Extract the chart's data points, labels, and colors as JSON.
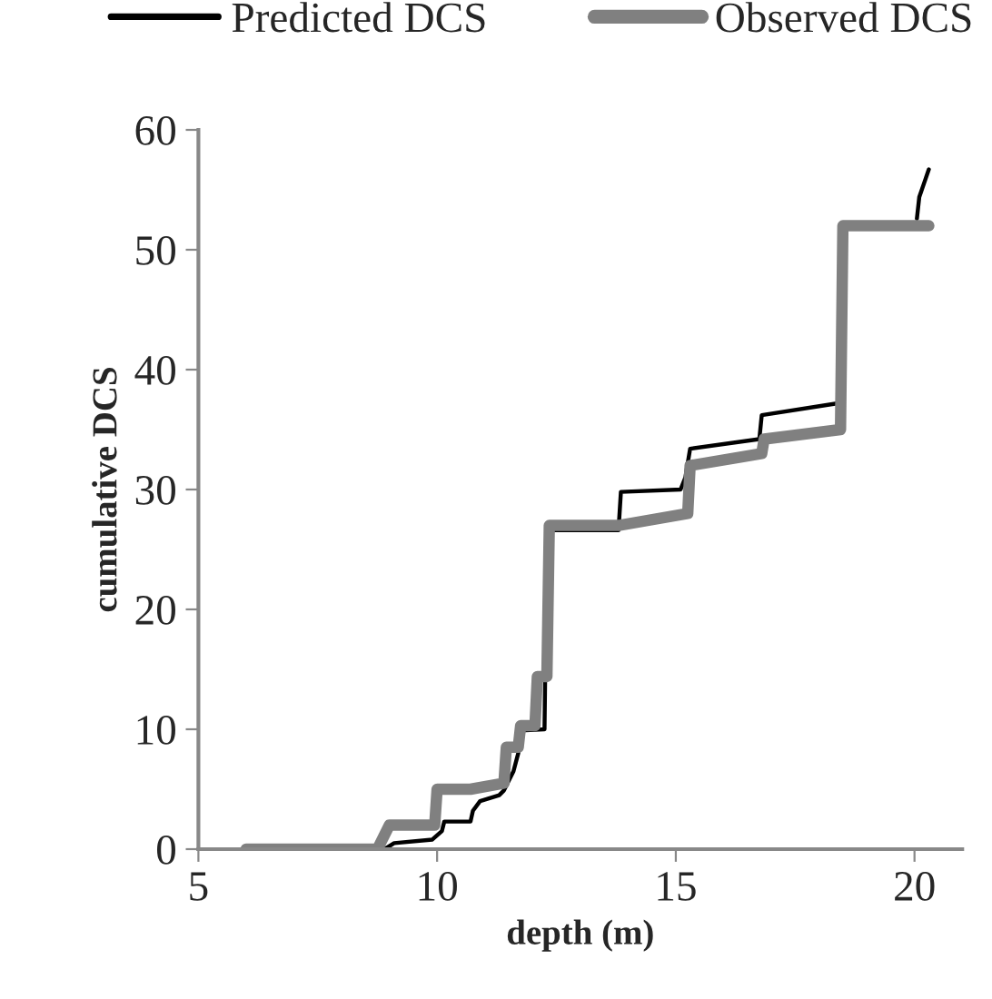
{
  "chart_data": {
    "type": "line",
    "xlabel": "depth (m)",
    "ylabel": "cumulative DCS",
    "xlim": [
      5,
      21
    ],
    "xticks": [
      5,
      10,
      15,
      20
    ],
    "ylim": [
      0,
      60
    ],
    "yticks": [
      0,
      10,
      20,
      30,
      40,
      50,
      60
    ],
    "grid": false,
    "legend": "top",
    "marker": "none",
    "line_style": "solid",
    "series": [
      {
        "name": "Predicted DCS",
        "color": "#000000",
        "x": [
          8.9,
          9.1,
          9.9,
          10.1,
          10.15,
          10.7,
          10.75,
          10.9,
          11.3,
          11.4,
          11.6,
          11.7,
          11.75,
          12.25,
          12.3,
          13.8,
          13.85,
          15.1,
          15.2,
          15.3,
          16.75,
          16.8,
          18.4,
          18.45,
          20.05,
          20.1,
          20.3
        ],
        "values": [
          0,
          0.5,
          0.8,
          1.5,
          2.3,
          2.3,
          3.2,
          4,
          4.5,
          4.9,
          6.5,
          8,
          9.9,
          10,
          26.6,
          26.6,
          29.8,
          30,
          31,
          33.4,
          34.2,
          36.2,
          37.2,
          null,
          52.6,
          54.4,
          56.7
        ]
      },
      {
        "name": "Observed DCS",
        "color": "#808080",
        "x": [
          6,
          8.75,
          9.0,
          9.95,
          10.0,
          10.7,
          11.4,
          11.45,
          11.7,
          11.75,
          12.05,
          12.1,
          12.3,
          12.35,
          13.8,
          15.25,
          15.3,
          16.8,
          16.85,
          18.45,
          18.5,
          20.3
        ],
        "values": [
          0,
          0,
          2,
          2,
          5,
          5,
          5.5,
          8.5,
          8.5,
          10.3,
          10.3,
          14.4,
          14.4,
          27,
          27,
          28,
          32,
          33,
          34.2,
          35,
          52,
          52
        ]
      }
    ]
  }
}
